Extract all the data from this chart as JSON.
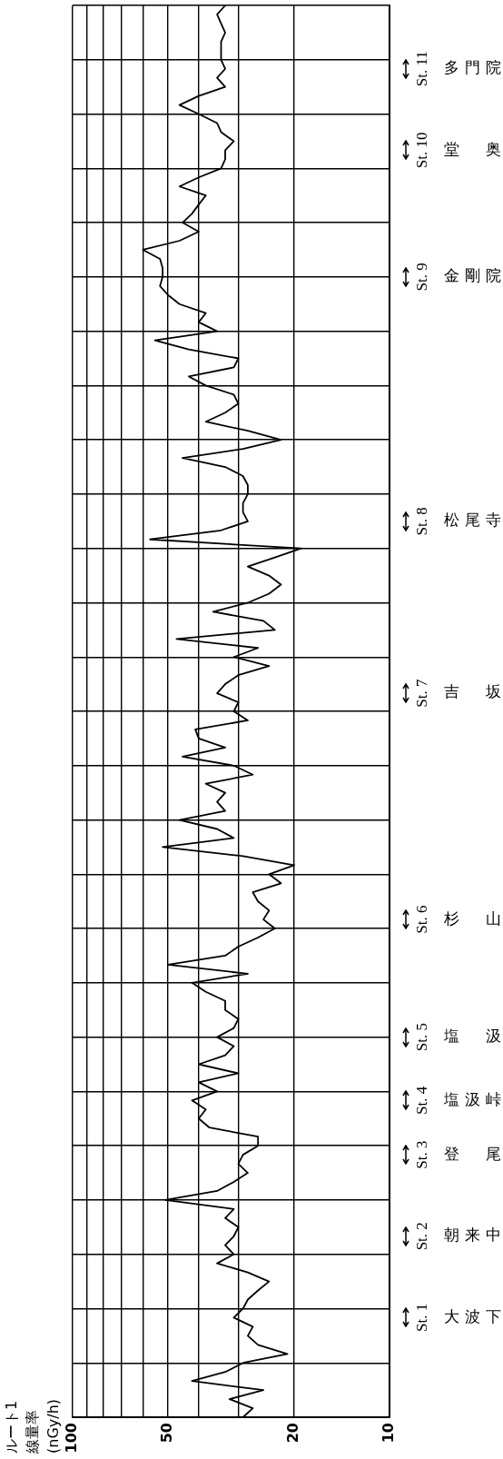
{
  "chart_data": {
    "type": "line",
    "orientation": "horizontal",
    "title": "ルート1",
    "annotations": [
      "線量率 (nGy/h)"
    ],
    "categories": [
      null,
      null,
      null,
      null,
      null,
      null,
      null,
      "St. 11 多門院",
      null,
      null,
      null,
      null,
      null,
      null,
      null,
      null,
      "St. 10 堂奥",
      null,
      null,
      null,
      null,
      null,
      null,
      null,
      null,
      null,
      null,
      null,
      null,
      null,
      "St. 9 金剛院",
      null,
      null,
      null,
      null,
      null,
      null,
      null,
      null,
      null,
      null,
      null,
      null,
      null,
      null,
      null,
      null,
      null,
      null,
      null,
      null,
      null,
      null,
      null,
      null,
      null,
      null,
      "St. 8 松尾寺",
      null,
      null,
      null,
      null,
      null,
      null,
      null,
      null,
      null,
      null,
      null,
      null,
      null,
      null,
      null,
      null,
      null,
      null,
      "St. 7 吉坂",
      null,
      null,
      null,
      null,
      null,
      null,
      null,
      null,
      null,
      null,
      null,
      null,
      null,
      null,
      null,
      null,
      null,
      null,
      null,
      null,
      null,
      null,
      null,
      null,
      "St. 6 杉山",
      null,
      null,
      null,
      null,
      null,
      null,
      null,
      null,
      null,
      null,
      null,
      null,
      "St. 5 塩汲",
      null,
      null,
      null,
      null,
      null,
      null,
      "St. 4 塩汲峠",
      null,
      null,
      null,
      null,
      null,
      "St. 3 登尾",
      null,
      null,
      null,
      null,
      null,
      null,
      null,
      null,
      "St. 2 朝来中",
      null,
      null,
      null,
      null,
      null,
      null,
      null,
      null,
      "St. 1 大波下",
      null,
      null,
      null,
      null,
      null,
      null,
      null,
      null,
      null,
      null,
      null
    ],
    "values": [
      33,
      35,
      34,
      33,
      34,
      34,
      34,
      33,
      35,
      33,
      40,
      46,
      40,
      35,
      34,
      31,
      33,
      33,
      34,
      40,
      46,
      38,
      40,
      42,
      45,
      40,
      46,
      60,
      53,
      52,
      52,
      53,
      50,
      46,
      38,
      40,
      35,
      55,
      43,
      30,
      31,
      43,
      38,
      31,
      30,
      33,
      38,
      28,
      22,
      29,
      45,
      33,
      29,
      28,
      28,
      29,
      29,
      28,
      34,
      57,
      19,
      23,
      28,
      24,
      22,
      24,
      28,
      36,
      25,
      23,
      47,
      26,
      31,
      24,
      30,
      33,
      35,
      30,
      31,
      28,
      41,
      40,
      33,
      45,
      31,
      27,
      38,
      33,
      35,
      33,
      46,
      35,
      31,
      52,
      29,
      20,
      24,
      22,
      27,
      26,
      24,
      25,
      23,
      26,
      30,
      33,
      50,
      28,
      42,
      38,
      33,
      33,
      30,
      31,
      35,
      31,
      33,
      40,
      30,
      40,
      35,
      42,
      38,
      40,
      37,
      26,
      26,
      29,
      30,
      28,
      31,
      35,
      51,
      31,
      33,
      30,
      31,
      33,
      31,
      35,
      28,
      24,
      26,
      28,
      29,
      31,
      27,
      28,
      26,
      21,
      29,
      33,
      42,
      25,
      32,
      27,
      29
    ],
    "color": "#000000",
    "marker": "none",
    "log": "x",
    "grid": true,
    "xlim": [
      100,
      10
    ],
    "xticks": [
      100,
      {
        "value": 90,
        "label": null
      },
      {
        "value": 80,
        "label": null
      },
      {
        "value": 70,
        "label": null
      },
      {
        "value": 60,
        "label": null
      },
      50,
      {
        "value": 40,
        "label": null
      },
      {
        "value": 30,
        "label": null
      },
      20,
      10
    ]
  }
}
